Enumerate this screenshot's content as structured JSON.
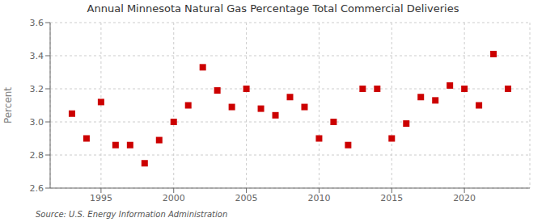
{
  "chart_data": {
    "type": "scatter",
    "title": "Annual Minnesota Natural Gas Percentage Total Commercial Deliveries",
    "ylabel": "Percent",
    "annotations": [
      "Source: U.S. Energy Information Administration"
    ],
    "x": [
      1993,
      1994,
      1995,
      1996,
      1997,
      1998,
      1999,
      2000,
      2001,
      2002,
      2003,
      2004,
      2005,
      2006,
      2007,
      2008,
      2009,
      2010,
      2011,
      2012,
      2013,
      2014,
      2015,
      2016,
      2017,
      2018,
      2019,
      2020,
      2021,
      2022,
      2023
    ],
    "values": [
      3.05,
      2.9,
      3.12,
      2.86,
      2.86,
      2.75,
      2.89,
      3.0,
      3.1,
      3.33,
      3.19,
      3.09,
      3.2,
      3.08,
      3.04,
      3.15,
      3.09,
      2.9,
      3.0,
      2.86,
      3.2,
      3.2,
      2.9,
      2.99,
      3.15,
      3.13,
      3.22,
      3.2,
      3.1,
      3.41,
      3.2
    ],
    "color": "#cc0000",
    "marker": "square",
    "xlim": [
      1991.5,
      2024.5
    ],
    "xticks": [
      1995,
      2000,
      2005,
      2010,
      2015,
      2020
    ],
    "ylim": [
      2.6,
      3.6
    ],
    "yticks": [
      2.6,
      2.8,
      {
        "value": 3,
        "label": "3.0"
      },
      3.2,
      3.4,
      3.6
    ],
    "grid": true
  }
}
